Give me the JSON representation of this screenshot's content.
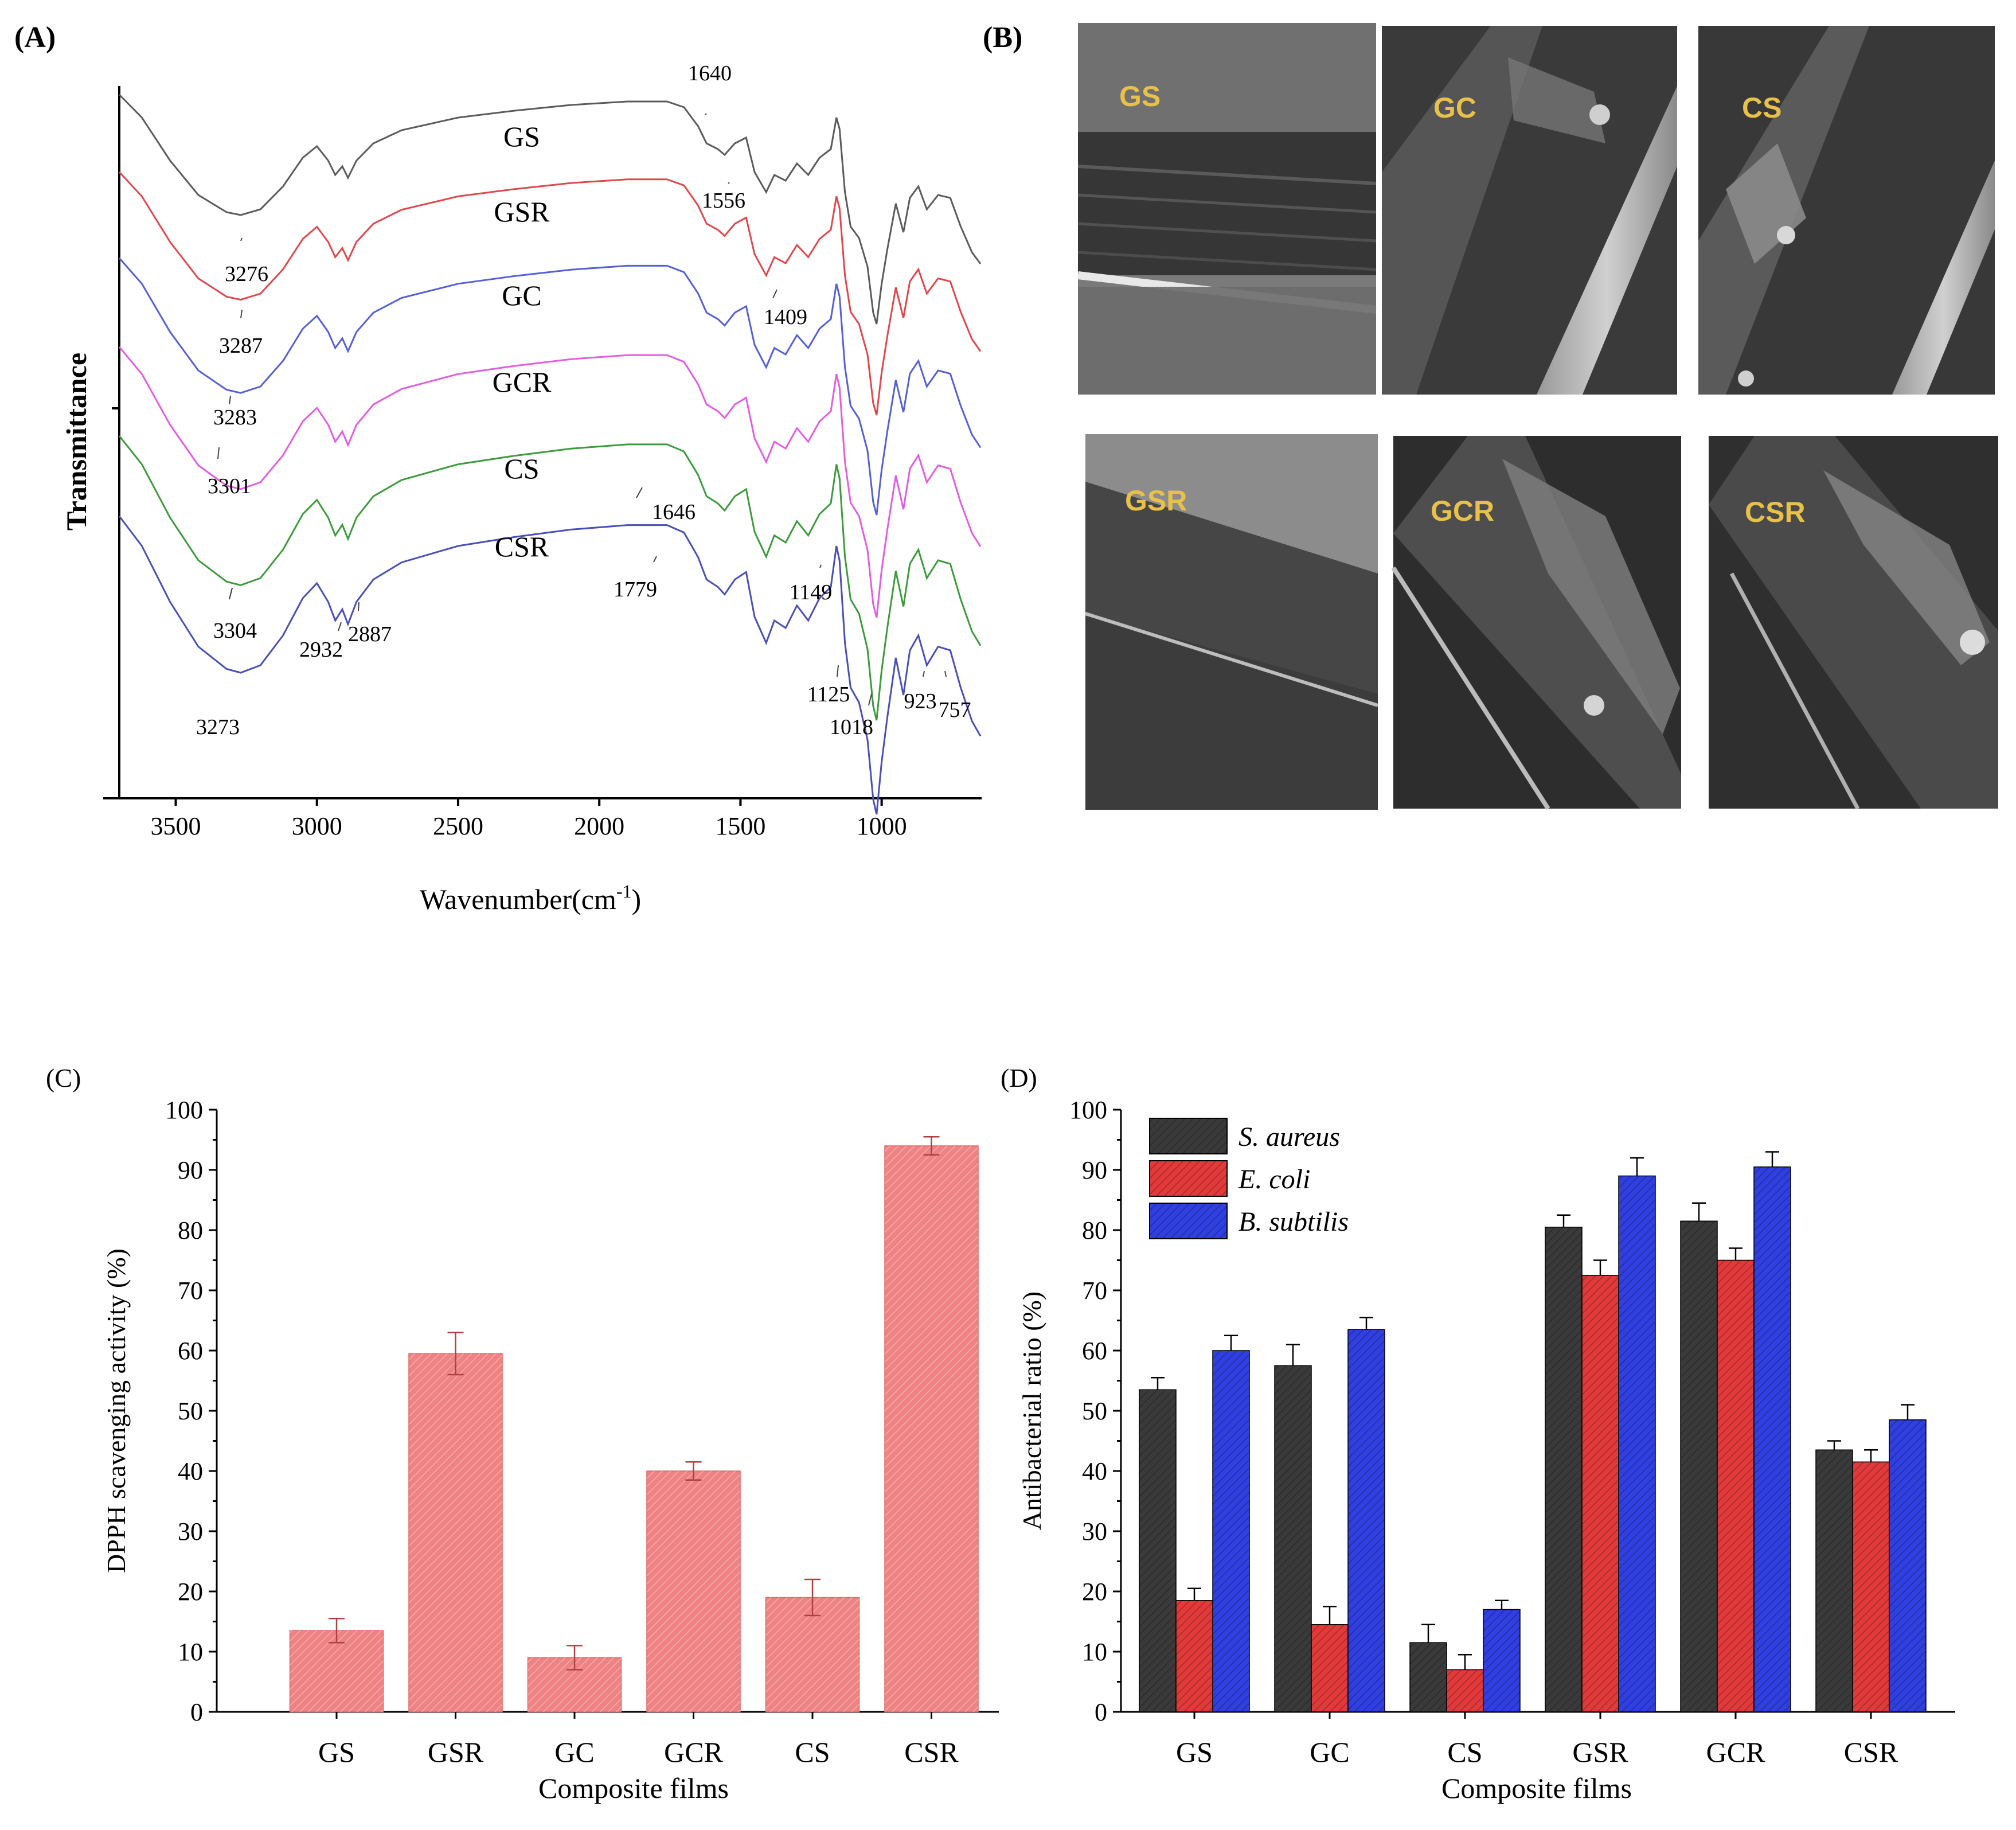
{
  "chart_data": [
    {
      "panel": "(A)",
      "type": "line",
      "title": "",
      "xlabel": "Wavenumber(cm",
      "xlabel_sup": "-1",
      "xlabel_close": ")",
      "ylabel": "Transmittance",
      "xlim": [
        3700,
        650
      ],
      "xticks": [
        3500,
        3000,
        2500,
        2000,
        1500,
        1000
      ],
      "series": [
        {
          "name": "GS",
          "color": "#5b5b5b"
        },
        {
          "name": "GSR",
          "color": "#e0474c"
        },
        {
          "name": "GC",
          "color": "#5560d6"
        },
        {
          "name": "GCR",
          "color": "#e25de0"
        },
        {
          "name": "CS",
          "color": "#3d9b3d"
        },
        {
          "name": "CSR",
          "color": "#4a4fb8"
        }
      ],
      "annotations": [
        "1640",
        "1556",
        "1409",
        "3276",
        "3287",
        "3283",
        "3301",
        "3304",
        "3273",
        "2932",
        "2887",
        "1646",
        "1779",
        "1149",
        "1125",
        "1018",
        "923",
        "757"
      ]
    },
    {
      "panel": "(C)",
      "type": "bar",
      "categories": [
        "GS",
        "GSR",
        "GC",
        "GCR",
        "CS",
        "CSR"
      ],
      "values": [
        13.5,
        59.5,
        9.0,
        40.0,
        19.0,
        94.0
      ],
      "errors": [
        2.0,
        3.5,
        2.0,
        1.5,
        3.0,
        1.5
      ],
      "xlabel": "Composite films",
      "ylabel": "DPPH scavenging activity (%)",
      "ylim": [
        0,
        100
      ],
      "yticks": [
        0,
        10,
        20,
        30,
        40,
        50,
        60,
        70,
        80,
        90,
        100
      ],
      "color": "#ef8282"
    },
    {
      "panel": "(D)",
      "type": "bar",
      "categories": [
        "GS",
        "GC",
        "CS",
        "GSR",
        "GCR",
        "CSR"
      ],
      "series": [
        {
          "name": "S. aureus",
          "color": "#3a3a3a",
          "values": [
            53.5,
            57.5,
            11.5,
            80.5,
            81.5,
            43.5
          ],
          "errors": [
            2.0,
            3.5,
            3.0,
            2.0,
            3.0,
            1.5
          ]
        },
        {
          "name": "E. coli",
          "color": "#e23a3a",
          "values": [
            18.5,
            14.5,
            7.0,
            72.5,
            75.0,
            41.5
          ],
          "errors": [
            2.0,
            3.0,
            2.5,
            2.5,
            2.0,
            2.0
          ]
        },
        {
          "name": "B. subtilis",
          "color": "#2f3fe0",
          "values": [
            60.0,
            63.5,
            17.0,
            89.0,
            90.5,
            48.5
          ],
          "errors": [
            2.5,
            2.0,
            1.5,
            3.0,
            2.5,
            2.5
          ]
        }
      ],
      "xlabel": "Composite films",
      "ylabel": "Antibacterial ratio (%)",
      "ylim": [
        0,
        100
      ],
      "yticks": [
        0,
        10,
        20,
        30,
        40,
        50,
        60,
        70,
        80,
        90,
        100
      ]
    }
  ],
  "panel_B": {
    "label": "(B)",
    "images": [
      "GS",
      "GC",
      "CS",
      "GSR",
      "GCR",
      "CSR"
    ]
  }
}
